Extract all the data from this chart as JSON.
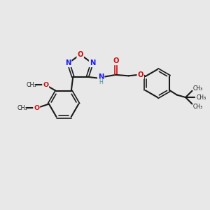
{
  "bg_color": "#e8e8e8",
  "bond_color": "#1a1a1a",
  "N_color": "#1a1aee",
  "O_color": "#cc1111",
  "NH_color": "#4a9090",
  "text_color": "#1a1a1a",
  "figsize": [
    3.0,
    3.0
  ],
  "dpi": 100,
  "xlim": [
    0,
    10
  ],
  "ylim": [
    0,
    10
  ]
}
